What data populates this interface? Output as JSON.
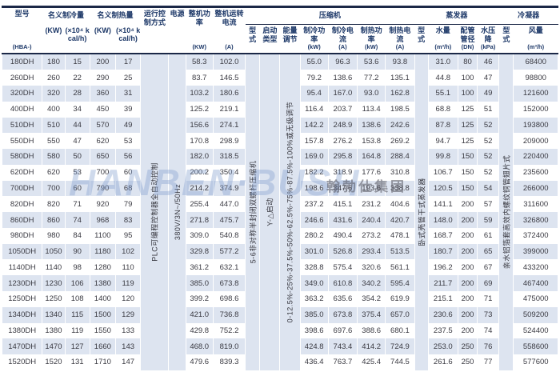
{
  "table": {
    "header": {
      "model": {
        "name": "型号",
        "unit": "(HBA-)"
      },
      "cooling": {
        "name": "名义制冷量",
        "unit_kw": "(KW)",
        "unit_kcal": "(×10⁴ kcal/h)"
      },
      "heating": {
        "name": "名义制热量",
        "unit_kw": "(KW)",
        "unit_kcal": "(×10⁴ kcal/h)"
      },
      "control": {
        "name": "运行控制方式"
      },
      "power_supply": {
        "name": "电源"
      },
      "total_power": {
        "name": "整机功率",
        "unit": "(KW)"
      },
      "total_current": {
        "name": "整机运转电流",
        "unit": "(A)"
      },
      "compressor": {
        "name": "压缩机",
        "type": "型式",
        "start": "启动类型",
        "energy": "能量调节",
        "cool_power": "制冷功率",
        "cool_power_unit": "(kW)",
        "cool_current": "制冷电流",
        "cool_current_unit": "(A)",
        "heat_power": "制热功率",
        "heat_power_unit": "(kW)",
        "heat_current": "制热电流",
        "heat_current_unit": "(A)"
      },
      "evaporator": {
        "name": "蒸发器",
        "type": "型式",
        "water": "水量",
        "water_unit": "(m³/h)",
        "pipe": "配管管径",
        "pipe_unit": "(DN)",
        "drop": "水压降",
        "drop_unit": "(kPa)"
      },
      "condenser": {
        "name": "冷凝器",
        "type": "型式",
        "air": "风量",
        "air_unit": "(m³/h)"
      }
    },
    "shared": {
      "control": "PLC可编程控制器全自动控制",
      "power_supply": "380V/3N~/50Hz",
      "compressor_type": "5-6非对称半封闭双螺杆压缩机",
      "compressor_start": "Y-△启动",
      "compressor_energy": "0-12.5%-25%-37.5%-50%-62.5%-75%-87.5%-100%或无级调节",
      "evaporator_type": "卧式壳管干式蒸发器",
      "condenser_type": "亲水铝箔套高效内螺纹铜管翅片式"
    },
    "rows": [
      [
        "180DH",
        "180",
        "15",
        "200",
        "17",
        "58.3",
        "102.0",
        "55.0",
        "96.3",
        "53.6",
        "93.8",
        "31.0",
        "80",
        "46",
        "68400"
      ],
      [
        "260DH",
        "260",
        "22",
        "290",
        "25",
        "83.7",
        "146.5",
        "79.2",
        "138.6",
        "77.2",
        "135.1",
        "44.8",
        "100",
        "47",
        "98800"
      ],
      [
        "320DH",
        "320",
        "28",
        "360",
        "31",
        "103.2",
        "180.6",
        "95.4",
        "167.0",
        "93.0",
        "162.8",
        "55.1",
        "100",
        "49",
        "121600"
      ],
      [
        "400DH",
        "400",
        "34",
        "450",
        "39",
        "125.2",
        "219.1",
        "116.4",
        "203.7",
        "113.4",
        "198.5",
        "68.8",
        "125",
        "51",
        "152000"
      ],
      [
        "510DH",
        "510",
        "44",
        "570",
        "49",
        "156.6",
        "274.1",
        "142.2",
        "248.9",
        "138.6",
        "242.6",
        "87.8",
        "125",
        "52",
        "193800"
      ],
      [
        "550DH",
        "550",
        "47",
        "620",
        "53",
        "170.8",
        "298.9",
        "157.8",
        "276.2",
        "153.8",
        "269.2",
        "94.7",
        "125",
        "52",
        "209000"
      ],
      [
        "580DH",
        "580",
        "50",
        "650",
        "56",
        "182.0",
        "318.5",
        "169.0",
        "295.8",
        "164.8",
        "288.4",
        "99.8",
        "150",
        "52",
        "220400"
      ],
      [
        "620DH",
        "620",
        "53",
        "700",
        "60",
        "200.2",
        "350.4",
        "182.2",
        "318.9",
        "177.6",
        "310.8",
        "106.7",
        "150",
        "52",
        "235600"
      ],
      [
        "700DH",
        "700",
        "60",
        "790",
        "68",
        "214.2",
        "374.9",
        "198.6",
        "347.6",
        "193.6",
        "338.8",
        "120.5",
        "150",
        "54",
        "266000"
      ],
      [
        "820DH",
        "820",
        "71",
        "920",
        "79",
        "255.4",
        "447.0",
        "237.2",
        "415.1",
        "231.2",
        "404.6",
        "141.1",
        "200",
        "57",
        "311600"
      ],
      [
        "860DH",
        "860",
        "74",
        "968",
        "83",
        "271.8",
        "475.7",
        "246.6",
        "431.6",
        "240.4",
        "420.7",
        "148.0",
        "200",
        "59",
        "326800"
      ],
      [
        "980DH",
        "980",
        "84",
        "1100",
        "95",
        "309.0",
        "540.8",
        "280.2",
        "490.4",
        "273.2",
        "478.1",
        "168.7",
        "200",
        "61",
        "372400"
      ],
      [
        "1050DH",
        "1050",
        "90",
        "1180",
        "102",
        "329.8",
        "577.2",
        "301.0",
        "526.8",
        "293.4",
        "513.5",
        "180.7",
        "200",
        "65",
        "399000"
      ],
      [
        "1140DH",
        "1140",
        "98",
        "1280",
        "110",
        "361.2",
        "632.1",
        "328.8",
        "575.4",
        "320.6",
        "561.1",
        "196.2",
        "200",
        "67",
        "433200"
      ],
      [
        "1230DH",
        "1230",
        "106",
        "1380",
        "119",
        "385.0",
        "673.8",
        "349.0",
        "610.8",
        "340.2",
        "595.4",
        "211.7",
        "200",
        "69",
        "467400"
      ],
      [
        "1250DH",
        "1250",
        "108",
        "1400",
        "120",
        "399.2",
        "698.6",
        "363.2",
        "635.6",
        "354.2",
        "619.9",
        "215.1",
        "200",
        "71",
        "475000"
      ],
      [
        "1340DH",
        "1340",
        "115",
        "1500",
        "129",
        "421.0",
        "736.8",
        "385.0",
        "673.8",
        "375.4",
        "657.0",
        "230.6",
        "200",
        "73",
        "509200"
      ],
      [
        "1380DH",
        "1380",
        "119",
        "1550",
        "133",
        "429.8",
        "752.2",
        "398.6",
        "697.6",
        "388.6",
        "680.1",
        "237.5",
        "200",
        "74",
        "524400"
      ],
      [
        "1470DH",
        "1470",
        "127",
        "1660",
        "143",
        "468.0",
        "819.0",
        "424.8",
        "743.4",
        "414.2",
        "724.9",
        "253.0",
        "250",
        "76",
        "558600"
      ],
      [
        "1520DH",
        "1520",
        "131",
        "1710",
        "147",
        "479.6",
        "839.3",
        "436.4",
        "763.7",
        "425.4",
        "744.5",
        "261.6",
        "250",
        "77",
        "577600"
      ]
    ]
  },
  "watermark": {
    "latin": "HANBEN·BUSH",
    "cn": "翰勃仕集团"
  }
}
